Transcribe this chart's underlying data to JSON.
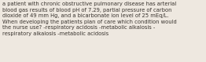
{
  "text": "a patient with chronic obstructive pulmonary disease has arterial\nblood gas results of blood pH of 7.29, partial pressure of carbon\ndioxide of 49 mm Hg, and a bicarbonate ion level of 25 mEq/L.\nWhen developing the patients plan of care which condition would\nthe nurse use? -respiratory acidosis -metabolic alkalosis -\nrespiratory alkalosis -metabolic acidosis",
  "background_color": "#eee8e0",
  "text_color": "#3a3530",
  "font_size": 4.85,
  "fig_width": 2.62,
  "fig_height": 0.79,
  "dpi": 100
}
